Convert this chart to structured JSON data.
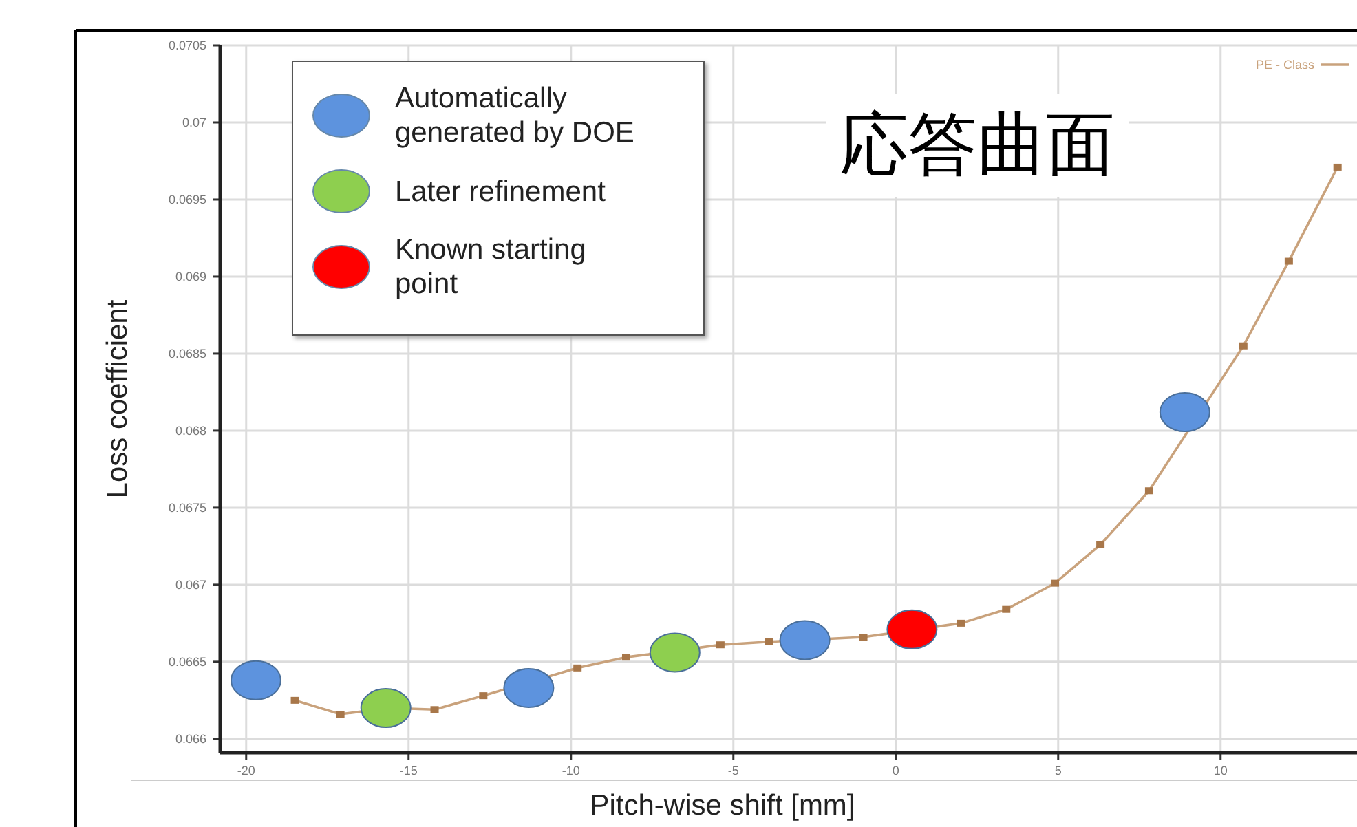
{
  "chart_data": {
    "type": "line",
    "title": "応答曲面",
    "xlabel": "Pitch-wise shift [mm]",
    "ylabel": "Loss coefficient",
    "xlim": [
      -20.8,
      14.2
    ],
    "ylim": [
      0.06591,
      0.0705
    ],
    "xticks": [
      -20,
      -15,
      -10,
      -5,
      0,
      5,
      10
    ],
    "yticks": [
      0.066,
      0.0665,
      0.067,
      0.0675,
      0.068,
      0.0685,
      0.069,
      0.0695,
      0.07,
      0.0705
    ],
    "grid": true,
    "legend": "top left",
    "series": [
      {
        "name": "PE - Class",
        "color": "#c9a27c",
        "marker": "square",
        "x": [
          -18.5,
          -17.1,
          -15.6,
          -14.2,
          -12.7,
          -9.8,
          -8.3,
          -6.8,
          -5.4,
          -3.9,
          -1.0,
          2.0,
          3.4,
          4.9,
          6.3,
          7.8,
          10.7,
          12.1,
          13.6
        ],
        "values": [
          0.06625,
          0.06616,
          0.0662,
          0.06619,
          0.06628,
          0.06646,
          0.06653,
          0.06657,
          0.06661,
          0.06663,
          0.06666,
          0.06675,
          0.06684,
          0.06701,
          0.06726,
          0.06761,
          0.06855,
          0.0691,
          0.06971
        ]
      },
      {
        "name": "Automatically generated by DOE",
        "type": "scatter",
        "color": "#5d93de",
        "marker": "circle",
        "x": [
          -19.7,
          -11.3,
          -2.8,
          8.9
        ],
        "values": [
          0.06638,
          0.06633,
          0.06664,
          0.06812
        ]
      },
      {
        "name": "Later refinement",
        "type": "scatter",
        "color": "#8ecf4f",
        "marker": "circle",
        "x": [
          -15.7,
          -6.8
        ],
        "values": [
          0.0662,
          0.06656
        ]
      },
      {
        "name": "Known starting point",
        "type": "scatter",
        "color": "#ff0000",
        "marker": "circle",
        "x": [
          0.5
        ],
        "values": [
          0.06671
        ]
      }
    ]
  }
}
